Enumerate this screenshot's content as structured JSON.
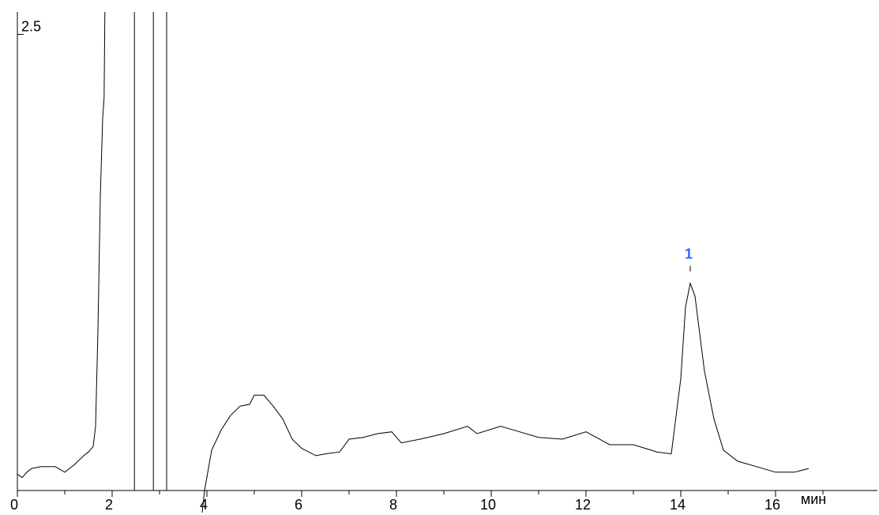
{
  "chart_data": {
    "type": "line",
    "x_label": "мин",
    "xlim": [
      0,
      18.15
    ],
    "ylim": [
      0,
      2.61
    ],
    "xticks": [
      0,
      2,
      4,
      6,
      8,
      10,
      12,
      14,
      16
    ],
    "xminorticks": [
      1,
      3,
      5,
      7,
      9,
      11,
      13,
      15,
      17
    ],
    "yticks": [
      2.5
    ],
    "series": [
      {
        "color": "#000000",
        "x": [
          0,
          0.1,
          0.2,
          0.3,
          0.5,
          0.8,
          1.0,
          1.2,
          1.4,
          1.5,
          1.6,
          1.65,
          1.7,
          1.75,
          1.8,
          1.83,
          1.85,
          2.0,
          2.47,
          2.47,
          2.6,
          2.87,
          2.87,
          3.0,
          3.15,
          3.15,
          3.5,
          3.9,
          3.95,
          4.1,
          4.3,
          4.5,
          4.7,
          4.9,
          5.0,
          5.2,
          5.4,
          5.6,
          5.8,
          6.0,
          6.3,
          6.5,
          6.8,
          7.0,
          7.3,
          7.6,
          7.9,
          8.1,
          8.5,
          9.0,
          9.5,
          9.7,
          10.2,
          10.6,
          11.0,
          11.5,
          12.0,
          12.5,
          13.0,
          13.5,
          13.8,
          14.0,
          14.1,
          14.2,
          14.3,
          14.5,
          14.7,
          14.9,
          15.2,
          15.6,
          16.0,
          16.4,
          16.7
        ],
        "values": [
          0.09,
          0.07,
          0.1,
          0.12,
          0.13,
          0.13,
          0.1,
          0.14,
          0.19,
          0.21,
          0.24,
          0.35,
          0.87,
          1.6,
          2.03,
          2.14,
          2.7,
          null,
          2.7,
          0,
          null,
          0,
          2.7,
          null,
          0,
          2.7,
          null,
          -0.12,
          0,
          0.22,
          0.33,
          0.41,
          0.46,
          0.47,
          0.52,
          0.52,
          0.46,
          0.39,
          0.28,
          0.23,
          0.19,
          0.2,
          0.21,
          0.28,
          0.29,
          0.31,
          0.32,
          0.26,
          0.28,
          0.31,
          0.35,
          0.31,
          0.35,
          0.32,
          0.29,
          0.28,
          0.32,
          0.25,
          0.25,
          0.21,
          0.2,
          0.61,
          1.0,
          1.13,
          1.06,
          0.65,
          0.39,
          0.22,
          0.16,
          0.13,
          0.1,
          0.1,
          0.12
        ]
      }
    ],
    "peak_labels": [
      {
        "label": "1",
        "x": 14.2,
        "color": "#3366ff"
      }
    ]
  }
}
